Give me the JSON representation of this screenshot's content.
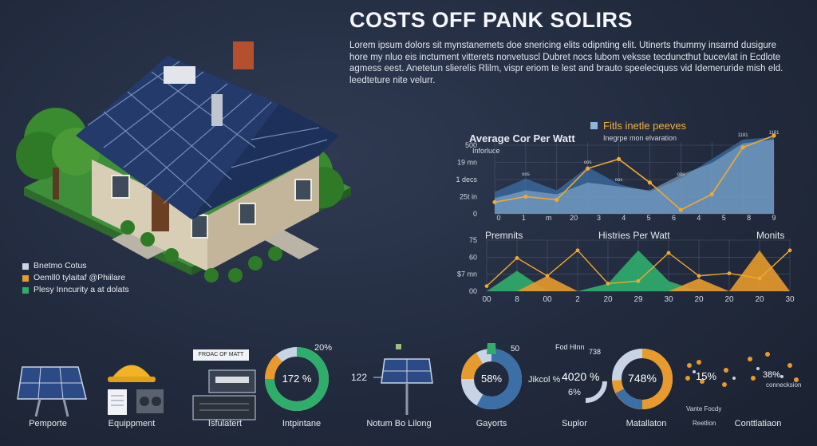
{
  "title": "COSTS OFF PANK SOLIRS",
  "intro": "Lorem ipsum dolors sit mynstanemets doe snericing elits odipnting elit.  Utinerts thummy insarnd dusigure hore  my nluo eis inctument vitterets nonvetuscl Dubret nocs lubom veksse  tecduncthut bucevlat in Ecdlote agmess eest.  Anetetun slierelis Rlilm, vispr eriom te lest and brauto speeleciquss vid Idemeruride mish eld. leedteture nite velurr.",
  "house_legend": [
    {
      "label": "Bnetmo Cotus",
      "color": "#cfd6e3"
    },
    {
      "label": "Oemll0 tylaitaf @Phiilare",
      "color": "#e89a2c"
    },
    {
      "label": "Plesy Inncurity a at dolats",
      "color": "#2fae6b"
    }
  ],
  "chart_data": [
    {
      "type": "area",
      "title": "Average Cor Per Watt",
      "legend_title": "Fitls inetle peeves",
      "legend_sub": "Inegrpe  mon  elvaration",
      "ylabel": "Inforluce",
      "y_ticks": [
        "500",
        "19 mn",
        "1 decs",
        "25t in",
        "0"
      ],
      "x_ticks": [
        "0",
        "1",
        "m",
        "20",
        "3",
        "4",
        "5",
        "6",
        "4",
        "5",
        "8",
        "9"
      ],
      "top_labels": [
        "oos",
        "oos",
        "oos",
        "oos",
        "1181",
        "1181"
      ],
      "ylim": [
        0,
        100
      ],
      "colors": {
        "area_back": "#3b6fa6",
        "area_front": "#8fb6d8",
        "line": "#f0a830"
      },
      "series": [
        {
          "values": [
            28,
            45,
            30,
            60,
            38,
            28,
            45,
            70,
            95,
            98
          ]
        },
        {
          "values": [
            20,
            30,
            25,
            40,
            35,
            30,
            50,
            65,
            90,
            95
          ]
        },
        {
          "values": [
            15,
            22,
            18,
            58,
            70,
            40,
            5,
            25,
            85,
            100
          ]
        }
      ]
    },
    {
      "type": "area",
      "title_left": "Premnits",
      "title_center": "Histries Per Watt",
      "title_right": "Monits",
      "y_ticks": [
        "75",
        "60",
        "$7 mn",
        "00"
      ],
      "x_ticks": [
        "00",
        "8",
        "00",
        "2",
        "20",
        "29",
        "30",
        "20",
        "20",
        "20",
        "30"
      ],
      "ylim": [
        0,
        100
      ],
      "colors": {
        "green": "#2fae6b",
        "orange": "#e89a2c",
        "line": "#f0a830"
      },
      "green_values": [
        0,
        40,
        0,
        0,
        15,
        80,
        20,
        0,
        0,
        0,
        0
      ],
      "orange_values": [
        0,
        0,
        30,
        0,
        0,
        0,
        0,
        25,
        0,
        80,
        0
      ],
      "line_values": [
        10,
        65,
        30,
        80,
        15,
        20,
        75,
        30,
        35,
        25,
        80
      ]
    }
  ],
  "tiles": [
    {
      "label": "Pemporte"
    },
    {
      "label": "Equippment"
    },
    {
      "label": "Isfulatert",
      "badge": "FROAC OF MATT"
    },
    {
      "label": "Intpintane",
      "percent": "172 %",
      "corner": "20%",
      "value": 0.78
    },
    {
      "label": "Notum Bo Lilong",
      "side": "122"
    },
    {
      "label": "Gayorts",
      "percent": "58%",
      "corner": "50",
      "value": 0.58
    },
    {
      "label": "Suplor",
      "top": "Fod Hlnn",
      "top_right": "738",
      "left_txt": "Jikcol  %",
      "percent": "4020 %",
      "under": "6%",
      "value": 0.4
    },
    {
      "label": "Matallaton",
      "percent": "748%",
      "value": 0.74
    },
    {
      "label": "Conttlatiaon",
      "percent_a": "15%",
      "percent_b": "38%",
      "caption_a": "Vante Focdy",
      "caption_b": "Reetlion",
      "caption_c": "connecksion",
      "caption_d": "Conttlatiaon"
    }
  ]
}
